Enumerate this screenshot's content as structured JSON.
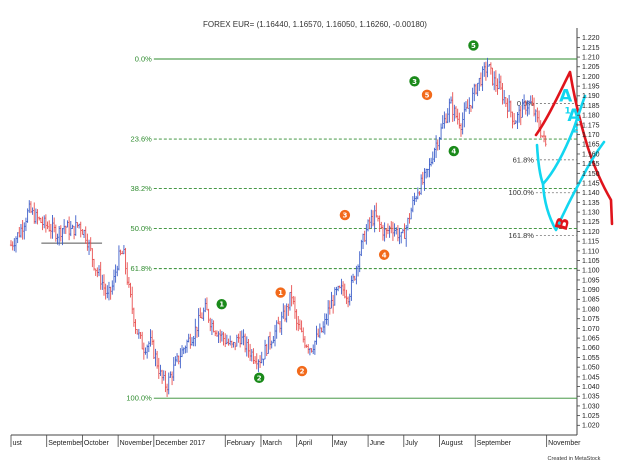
{
  "header": {
    "title": "FOREX EUR= (1.16440, 1.16570, 1.16050, 1.16260, -0.00180)"
  },
  "footer": {
    "credit": "Created in MetaStock"
  },
  "chart_data": {
    "type": "candlestick",
    "title": "FOREX EUR= (1.16440, 1.16570, 1.16050, 1.16260, -0.00180)",
    "y_axis": {
      "position": "right",
      "ylim": [
        1.015,
        1.225
      ],
      "tick_labels": [
        "1.220",
        "1.215",
        "1.210",
        "1.205",
        "1.200",
        "1.195",
        "1.190",
        "1.185",
        "1.180",
        "1.175",
        "1.170",
        "1.165",
        "1.160",
        "1.155",
        "1.150",
        "1.145",
        "1.140",
        "1.135",
        "1.130",
        "1.125",
        "1.120",
        "1.115",
        "1.110",
        "1.105",
        "1.100",
        "1.095",
        "1.090",
        "1.085",
        "1.080",
        "1.075",
        "1.070",
        "1.065",
        "1.060",
        "1.055",
        "1.050",
        "1.045",
        "1.040",
        "1.035",
        "1.030",
        "1.025",
        "1.020"
      ]
    },
    "x_axis": {
      "months": [
        {
          "label": "ust",
          "x": 0.0
        },
        {
          "label": "September",
          "x": 1.0
        },
        {
          "label": "October",
          "x": 2.0
        },
        {
          "label": "November",
          "x": 3.0
        },
        {
          "label": "December 2017",
          "x": 4.0
        },
        {
          "label": "February",
          "x": 6.0
        },
        {
          "label": "March",
          "x": 7.0
        },
        {
          "label": "April",
          "x": 8.0
        },
        {
          "label": "May",
          "x": 9.0
        },
        {
          "label": "June",
          "x": 10.0
        },
        {
          "label": "July",
          "x": 11.0
        },
        {
          "label": "August",
          "x": 12.0
        },
        {
          "label": "September",
          "x": 13.0
        },
        {
          "label": "November",
          "x": 15.0
        }
      ],
      "xlim": [
        0.0,
        15.85
      ]
    },
    "price_path": [
      [
        0.0,
        1.113
      ],
      [
        0.25,
        1.12
      ],
      [
        0.5,
        1.131
      ],
      [
        0.7,
        1.127
      ],
      [
        0.9,
        1.124
      ],
      [
        1.1,
        1.122
      ],
      [
        1.3,
        1.119
      ],
      [
        1.5,
        1.123
      ],
      [
        1.7,
        1.12
      ],
      [
        1.9,
        1.124
      ],
      [
        2.1,
        1.118
      ],
      [
        2.35,
        1.102
      ],
      [
        2.55,
        1.094
      ],
      [
        2.7,
        1.086
      ],
      [
        2.85,
        1.092
      ],
      [
        3.0,
        1.106
      ],
      [
        3.15,
        1.109
      ],
      [
        3.3,
        1.09
      ],
      [
        3.5,
        1.07
      ],
      [
        3.7,
        1.06
      ],
      [
        3.9,
        1.063
      ],
      [
        4.05,
        1.055
      ],
      [
        4.2,
        1.045
      ],
      [
        4.35,
        1.04
      ],
      [
        4.5,
        1.047
      ],
      [
        4.7,
        1.055
      ],
      [
        4.9,
        1.062
      ],
      [
        5.1,
        1.067
      ],
      [
        5.3,
        1.075
      ],
      [
        5.45,
        1.08
      ],
      [
        5.6,
        1.073
      ],
      [
        5.8,
        1.068
      ],
      [
        6.0,
        1.064
      ],
      [
        6.2,
        1.06
      ],
      [
        6.4,
        1.066
      ],
      [
        6.6,
        1.06
      ],
      [
        6.8,
        1.056
      ],
      [
        7.0,
        1.054
      ],
      [
        7.2,
        1.062
      ],
      [
        7.45,
        1.07
      ],
      [
        7.7,
        1.078
      ],
      [
        7.85,
        1.088
      ],
      [
        8.0,
        1.072
      ],
      [
        8.2,
        1.064
      ],
      [
        8.4,
        1.06
      ],
      [
        8.6,
        1.066
      ],
      [
        8.75,
        1.07
      ],
      [
        8.9,
        1.08
      ],
      [
        9.1,
        1.088
      ],
      [
        9.3,
        1.09
      ],
      [
        9.45,
        1.087
      ],
      [
        9.6,
        1.096
      ],
      [
        9.75,
        1.108
      ],
      [
        9.9,
        1.118
      ],
      [
        10.05,
        1.125
      ],
      [
        10.2,
        1.128
      ],
      [
        10.35,
        1.122
      ],
      [
        10.5,
        1.119
      ],
      [
        10.65,
        1.123
      ],
      [
        10.8,
        1.12
      ],
      [
        10.95,
        1.116
      ],
      [
        11.1,
        1.124
      ],
      [
        11.25,
        1.134
      ],
      [
        11.4,
        1.142
      ],
      [
        11.55,
        1.146
      ],
      [
        11.7,
        1.152
      ],
      [
        11.85,
        1.163
      ],
      [
        12.0,
        1.17
      ],
      [
        12.15,
        1.178
      ],
      [
        12.3,
        1.186
      ],
      [
        12.45,
        1.18
      ],
      [
        12.6,
        1.176
      ],
      [
        12.75,
        1.182
      ],
      [
        12.9,
        1.188
      ],
      [
        13.05,
        1.196
      ],
      [
        13.2,
        1.2
      ],
      [
        13.35,
        1.206
      ],
      [
        13.5,
        1.198
      ],
      [
        13.65,
        1.195
      ],
      [
        13.8,
        1.189
      ],
      [
        13.95,
        1.184
      ],
      [
        14.1,
        1.177
      ],
      [
        14.25,
        1.181
      ],
      [
        14.4,
        1.185
      ],
      [
        14.55,
        1.186
      ],
      [
        14.7,
        1.179
      ],
      [
        14.85,
        1.171
      ],
      [
        15.0,
        1.163
      ]
    ],
    "main_retracement": {
      "low": 1.034,
      "high": 1.209,
      "x_start": 4.0,
      "x_end": 15.85,
      "levels": [
        {
          "label": "0.0%",
          "ratio": 0.0
        },
        {
          "label": "23.6%",
          "ratio": 0.236
        },
        {
          "label": "38.2%",
          "ratio": 0.382
        },
        {
          "label": "50.0%",
          "ratio": 0.5
        },
        {
          "label": "61.8%",
          "ratio": 0.618
        },
        {
          "label": "100.0%",
          "ratio": 1.0
        }
      ]
    },
    "small_fib": [
      {
        "label": "0.0%",
        "value": 1.186,
        "x_start": 14.7,
        "x_end": 15.85
      },
      {
        "label": "61.8%",
        "value": 1.157,
        "x_start": 14.7,
        "x_end": 15.85
      },
      {
        "label": "100.0%",
        "value": 1.14,
        "x_start": 14.7,
        "x_end": 15.85
      },
      {
        "label": "161.8%",
        "value": 1.118,
        "x_start": 14.7,
        "x_end": 15.85
      }
    ],
    "support_line": {
      "value": 1.114,
      "x_start": 0.85,
      "x_end": 2.55
    },
    "wave_markers_green": [
      {
        "label": "1",
        "x": 5.9,
        "y": 1.0825
      },
      {
        "label": "2",
        "x": 6.95,
        "y": 1.0445
      },
      {
        "label": "3",
        "x": 11.3,
        "y": 1.1975
      },
      {
        "label": "4",
        "x": 12.4,
        "y": 1.1615
      },
      {
        "label": "5",
        "x": 12.95,
        "y": 1.216
      }
    ],
    "wave_markers_orange": [
      {
        "label": "1",
        "x": 7.55,
        "y": 1.0885
      },
      {
        "label": "2",
        "x": 8.15,
        "y": 1.048
      },
      {
        "label": "3",
        "x": 9.35,
        "y": 1.1285
      },
      {
        "label": "4",
        "x": 10.45,
        "y": 1.108
      },
      {
        "label": "5",
        "x": 11.65,
        "y": 1.1905
      }
    ],
    "annotations": [
      {
        "text": "A",
        "color": "#12d6f0",
        "x": 15.35,
        "y": 1.187
      },
      {
        "text": "1",
        "color": "#12d6f0",
        "x": 15.5,
        "y": 1.181
      },
      {
        "text": "A",
        "color": "#12d6f0",
        "x": 15.58,
        "y": 1.177
      },
      {
        "text": "2",
        "color": "#12d6f0",
        "x": 15.72,
        "y": 1.171
      },
      {
        "text": "B",
        "color": "#e0141c",
        "x": 15.55,
        "y": 1.12
      }
    ],
    "colors": {
      "up_bar": "#3d5ec9",
      "down_bar": "#e85050",
      "fib_green": "#2e8b2e",
      "fib_gray": "#777777",
      "wave_green": "#1a8a1a",
      "wave_orange": "#f26a1b",
      "hand_red": "#e0141c",
      "hand_cyan": "#12d6f0"
    },
    "grid": false,
    "legend": "none"
  }
}
